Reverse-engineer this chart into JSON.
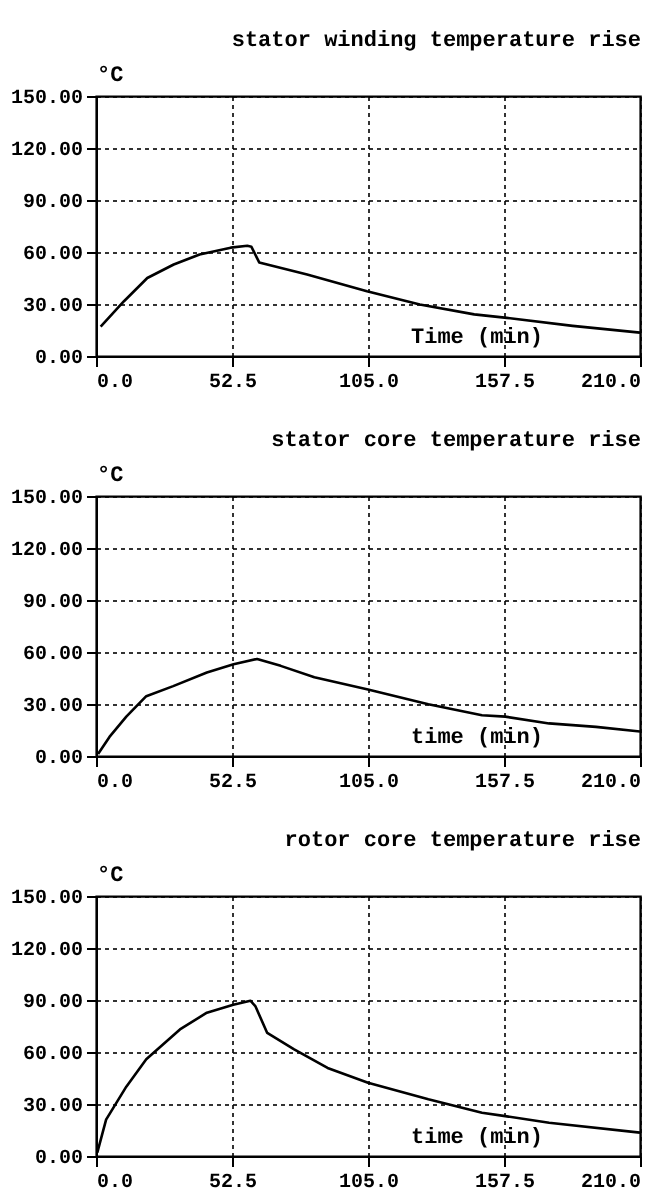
{
  "chart_data": [
    {
      "type": "line",
      "title": "stator winding temperature rise",
      "ylabel": "°C",
      "xlabel": "Time (min)",
      "x": [
        1.8,
        10.8,
        19.8,
        30,
        40,
        52,
        58.4,
        60,
        63,
        81.5,
        104.6,
        125,
        146,
        158.6,
        184,
        210
      ],
      "series": [
        {
          "color": "#000000",
          "values": [
            17,
            31.6,
            45,
            52.8,
            58.6,
            62.5,
            63.6,
            63,
            54,
            47,
            37.4,
            29.7,
            24,
            22,
            17.4,
            13.5
          ]
        }
      ],
      "xlim": [
        0,
        210
      ],
      "ylim": [
        0,
        150
      ],
      "xticks": [
        {
          "value": 0,
          "label": "0.0"
        },
        {
          "value": 52.5,
          "label": "52.5"
        },
        {
          "value": 105,
          "label": "105.0"
        },
        {
          "value": 157.5,
          "label": "157.5"
        },
        {
          "value": 210,
          "label": "210.0"
        }
      ],
      "yticks": [
        {
          "value": 0,
          "label": "0.00"
        },
        {
          "value": 30,
          "label": "30.00"
        },
        {
          "value": 60,
          "label": "60.00"
        },
        {
          "value": 90,
          "label": "90.00"
        },
        {
          "value": 120,
          "label": "120.00"
        },
        {
          "value": 150,
          "label": "150.00"
        }
      ],
      "grid": true,
      "line_style": "solid"
    },
    {
      "type": "line",
      "title": "stator core temperature rise",
      "ylabel": "°C",
      "xlabel": "time (min)",
      "x": [
        0.8,
        5.2,
        11.7,
        19.4,
        29.8,
        42.8,
        53.1,
        62.2,
        71.3,
        84.3,
        105,
        128.3,
        149,
        158,
        174.9,
        193,
        210
      ],
      "series": [
        {
          "color": "#000000",
          "values": [
            1.2,
            11,
            22.7,
            34.5,
            40.3,
            48.2,
            52.9,
            56,
            52,
            45.4,
            38.4,
            29.8,
            23.5,
            22.7,
            18.8,
            16.8,
            14.1
          ]
        }
      ],
      "xlim": [
        0,
        210
      ],
      "ylim": [
        0,
        150
      ],
      "xticks": [
        {
          "value": 0,
          "label": "0.0"
        },
        {
          "value": 52.5,
          "label": "52.5"
        },
        {
          "value": 105,
          "label": "105.0"
        },
        {
          "value": 157.5,
          "label": "157.5"
        },
        {
          "value": 210,
          "label": "210.0"
        }
      ],
      "yticks": [
        {
          "value": 0,
          "label": "0.00"
        },
        {
          "value": 30,
          "label": "30.00"
        },
        {
          "value": 60,
          "label": "60.00"
        },
        {
          "value": 90,
          "label": "90.00"
        },
        {
          "value": 120,
          "label": "120.00"
        },
        {
          "value": 150,
          "label": "150.00"
        }
      ],
      "grid": true,
      "line_style": "solid"
    },
    {
      "type": "line",
      "title": "rotor core temperature rise",
      "ylabel": "°C",
      "xlabel": "time (min)",
      "x": [
        0.5,
        3.9,
        11.7,
        19.4,
        32.4,
        42.8,
        53,
        59.6,
        61.5,
        66.1,
        76.5,
        89.4,
        105,
        128.3,
        149,
        158,
        174.9,
        210
      ],
      "series": [
        {
          "color": "#000000",
          "values": [
            1.9,
            21,
            40,
            55.8,
            73,
            82.7,
            87.3,
            89.6,
            86.5,
            71,
            61.5,
            50.8,
            42.3,
            32.7,
            25,
            23,
            19.2,
            13.5
          ]
        }
      ],
      "xlim": [
        0,
        210
      ],
      "ylim": [
        0,
        150
      ],
      "xticks": [
        {
          "value": 0,
          "label": "0.0"
        },
        {
          "value": 52.5,
          "label": "52.5"
        },
        {
          "value": 105,
          "label": "105.0"
        },
        {
          "value": 157.5,
          "label": "157.5"
        },
        {
          "value": 210,
          "label": "210.0"
        }
      ],
      "yticks": [
        {
          "value": 0,
          "label": "0.00"
        },
        {
          "value": 30,
          "label": "30.00"
        },
        {
          "value": 60,
          "label": "60.00"
        },
        {
          "value": 90,
          "label": "90.00"
        },
        {
          "value": 120,
          "label": "120.00"
        },
        {
          "value": 150,
          "label": "150.00"
        }
      ],
      "grid": true,
      "line_style": "solid"
    }
  ]
}
